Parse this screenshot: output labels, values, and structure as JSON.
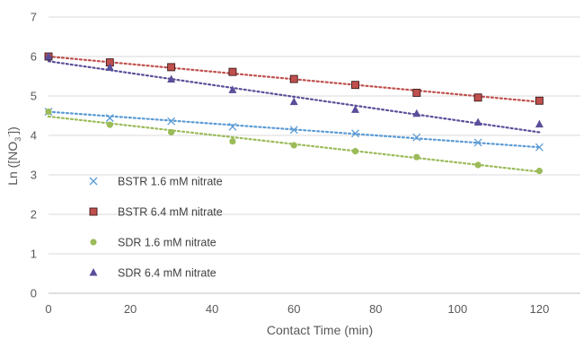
{
  "chart_data": {
    "type": "scatter",
    "title": "",
    "xlabel": "Contact Time (min)",
    "ylabel_parts": {
      "main": "Ln ([NO",
      "sub": "3",
      "sup": "-",
      "close": "])"
    },
    "xlim": [
      0,
      130
    ],
    "ylim": [
      0,
      7
    ],
    "xticks": [
      0,
      20,
      40,
      60,
      80,
      100,
      120
    ],
    "yticks": [
      0,
      1,
      2,
      3,
      4,
      5,
      6,
      7
    ],
    "grid": "horizontal",
    "legend_placement": "inside-left",
    "series": [
      {
        "name": "BSTR 1.6 mM nitrate",
        "marker": "x",
        "color": "#5b9bd5",
        "x": [
          0,
          15,
          30,
          45,
          60,
          75,
          90,
          105,
          120
        ],
        "y": [
          4.6,
          4.44,
          4.36,
          4.22,
          4.14,
          4.05,
          3.95,
          3.82,
          3.7
        ],
        "trend": [
          4.6,
          3.7
        ]
      },
      {
        "name": "BSTR 6.4 mM nitrate",
        "marker": "square",
        "color": "#c0504d",
        "x": [
          0,
          15,
          30,
          45,
          60,
          75,
          90,
          105,
          120
        ],
        "y": [
          6.0,
          5.85,
          5.73,
          5.61,
          5.43,
          5.28,
          5.08,
          4.96,
          4.88
        ],
        "trend": [
          6.0,
          4.85
        ]
      },
      {
        "name": "SDR 1.6 mM nitrate",
        "marker": "circle",
        "color": "#9bbb59",
        "x": [
          0,
          15,
          30,
          45,
          60,
          75,
          90,
          105,
          120
        ],
        "y": [
          4.6,
          4.27,
          4.08,
          3.85,
          3.75,
          3.6,
          3.45,
          3.25,
          3.1
        ],
        "trend": [
          4.48,
          3.08
        ]
      },
      {
        "name": "SDR 6.4 mM nitrate",
        "marker": "triangle",
        "color": "#5a4f9a",
        "x": [
          0,
          15,
          30,
          45,
          60,
          75,
          90,
          105,
          120
        ],
        "y": [
          6.0,
          5.72,
          5.42,
          5.15,
          4.85,
          4.65,
          4.55,
          4.33,
          4.28
        ],
        "trend": [
          5.88,
          4.08
        ]
      }
    ]
  }
}
